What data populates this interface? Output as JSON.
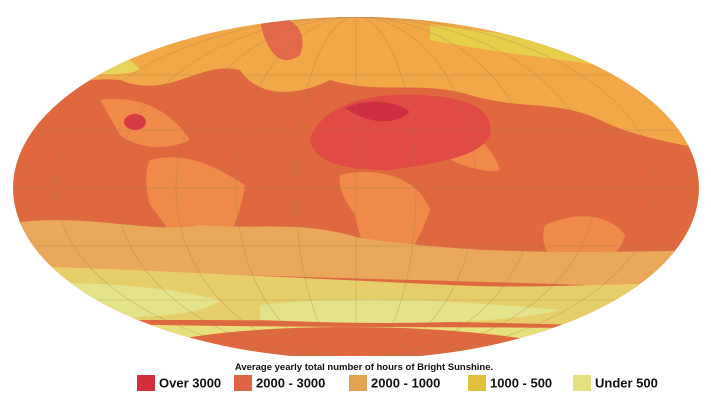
{
  "caption": "Average yearly total number of hours of Bright Sunshine.",
  "legend": [
    {
      "label": "Over 3000",
      "color": "#d42e3e"
    },
    {
      "label": "2000 - 3000",
      "color": "#df6444"
    },
    {
      "label": "2000 - 1000",
      "color": "#e3a24f"
    },
    {
      "label": "1000 - 500",
      "color": "#e2c23a"
    },
    {
      "label": "Under 500",
      "color": "#e4e27e"
    }
  ]
}
